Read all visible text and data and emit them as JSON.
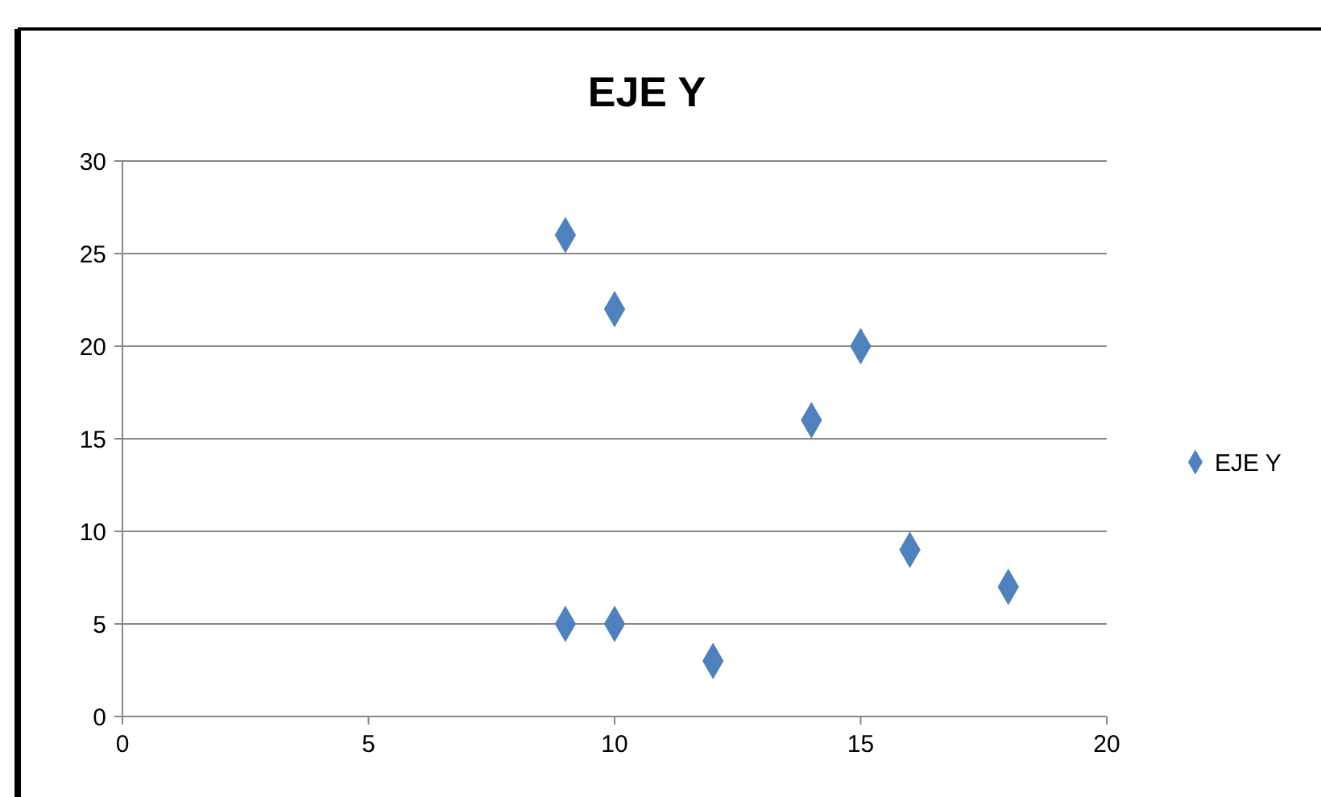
{
  "chart_data": {
    "type": "scatter",
    "title": "EJE Y",
    "x": [
      9,
      10,
      15,
      14,
      16,
      18,
      9,
      10,
      12
    ],
    "series": [
      {
        "name": "EJE Y",
        "color": "#4f81bd",
        "values": [
          26,
          22,
          20,
          16,
          9,
          7,
          5,
          5,
          3
        ]
      }
    ],
    "xlim": [
      0,
      20
    ],
    "xticks": [
      0,
      5,
      10,
      15,
      20
    ],
    "ylim": [
      0,
      30
    ],
    "yticks": [
      0,
      5,
      10,
      15,
      20,
      25,
      30
    ],
    "grid": "y",
    "legend": "right",
    "marker": "diamond"
  }
}
